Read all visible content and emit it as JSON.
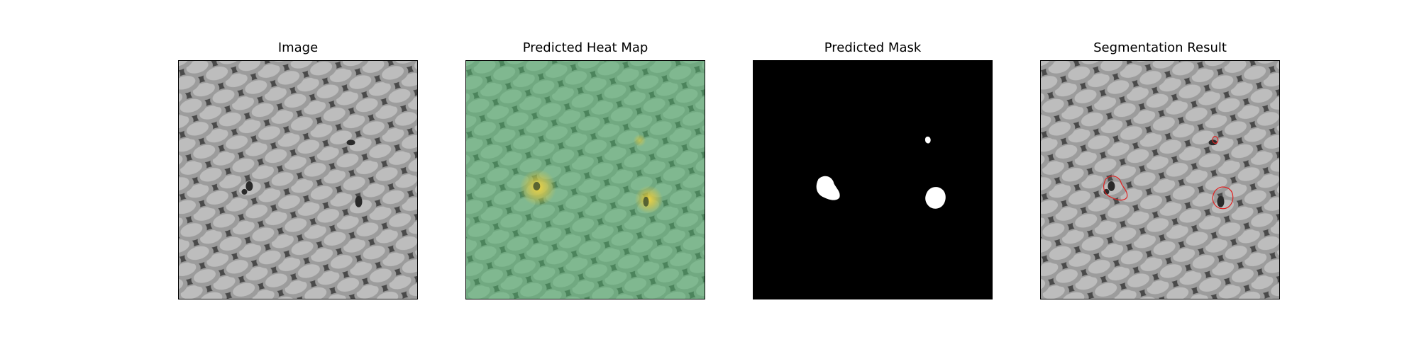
{
  "panels": {
    "image": {
      "title": "Image"
    },
    "heatmap": {
      "title": "Predicted Heat Map"
    },
    "mask": {
      "title": "Predicted Mask"
    },
    "result": {
      "title": "Segmentation Result"
    }
  },
  "colors": {
    "mesh_dark": "#3a3a3a",
    "mesh_light": "#b9b9b9",
    "heatmap_tint": "#5fb87a",
    "heat_hot": "#f2d23c",
    "mask_bg": "#000000",
    "mask_fg": "#ffffff",
    "contour": "#e02020"
  }
}
